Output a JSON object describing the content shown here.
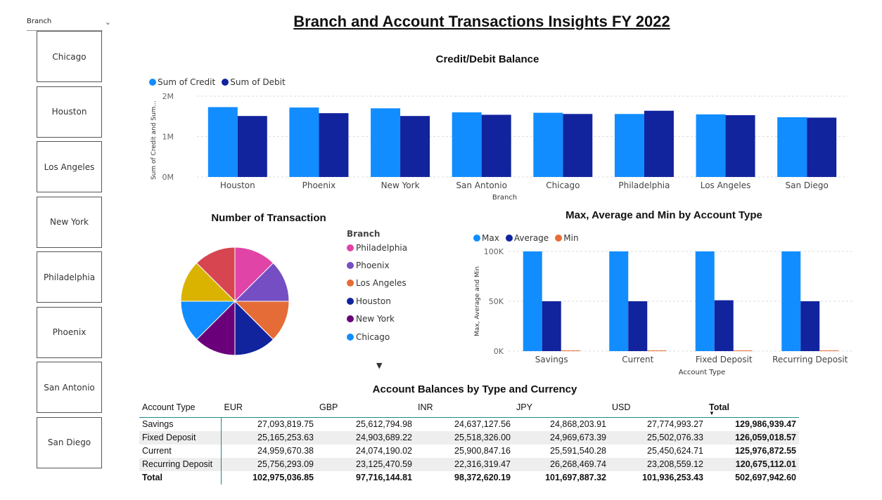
{
  "page": {
    "title": "Branch and Account Transactions Insights FY 2022"
  },
  "slicer": {
    "header": "Branch",
    "items": [
      "Chicago",
      "Houston",
      "Los Angeles",
      "New York",
      "Philadelphia",
      "Phoenix",
      "San Antonio",
      "San Diego"
    ]
  },
  "credit_debit": {
    "title": "Credit/Debit Balance",
    "legend": [
      "Sum of Credit",
      "Sum of Debit"
    ],
    "colors": [
      "#118DFF",
      "#12239E"
    ],
    "chart_data": {
      "type": "bar",
      "categories": [
        "Houston",
        "Phoenix",
        "New York",
        "San Antonio",
        "Chicago",
        "Philadelphia",
        "Los Angeles",
        "San Diego"
      ],
      "series": [
        {
          "name": "Sum of Credit",
          "values": [
            1730000,
            1720000,
            1700000,
            1600000,
            1590000,
            1560000,
            1550000,
            1480000
          ]
        },
        {
          "name": "Sum of Debit",
          "values": [
            1510000,
            1580000,
            1510000,
            1540000,
            1560000,
            1640000,
            1530000,
            1470000
          ]
        }
      ],
      "xlabel": "Branch",
      "ylabel": "Sum of Credit and Sum...",
      "yticks": [
        "0M",
        "1M",
        "2M"
      ],
      "ylim": [
        0,
        2000000
      ]
    }
  },
  "transactions": {
    "title": "Number of Transaction",
    "legend_title": "Branch",
    "more_indicator": "▼",
    "chart_data": {
      "type": "pie",
      "slices": [
        {
          "name": "Philadelphia",
          "value": 12.5,
          "color": "#E044A7"
        },
        {
          "name": "Phoenix",
          "value": 12.5,
          "color": "#744EC2"
        },
        {
          "name": "Los Angeles",
          "value": 12.5,
          "color": "#E66C37"
        },
        {
          "name": "Houston",
          "value": 12.5,
          "color": "#12239E"
        },
        {
          "name": "New York",
          "value": 12.5,
          "color": "#6B007B"
        },
        {
          "name": "Chicago",
          "value": 12.5,
          "color": "#118DFF"
        },
        {
          "name": "San Antonio",
          "value": 12.5,
          "color": "#D9B300"
        },
        {
          "name": "San Diego",
          "value": 12.5,
          "color": "#D64550"
        }
      ],
      "legend_visible": [
        "Philadelphia",
        "Phoenix",
        "Los Angeles",
        "Houston",
        "New York",
        "Chicago"
      ]
    }
  },
  "account_type": {
    "title": "Max, Average and Min by Account Type",
    "legend": [
      "Max",
      "Average",
      "Min"
    ],
    "colors": [
      "#118DFF",
      "#12239E",
      "#E66C37"
    ],
    "chart_data": {
      "type": "bar",
      "categories": [
        "Savings",
        "Current",
        "Fixed Deposit",
        "Recurring Deposit"
      ],
      "series": [
        {
          "name": "Max",
          "values": [
            100000,
            100000,
            100000,
            100000
          ]
        },
        {
          "name": "Average",
          "values": [
            50000,
            50000,
            51000,
            50000
          ]
        },
        {
          "name": "Min",
          "values": [
            500,
            500,
            500,
            500
          ]
        }
      ],
      "xlabel": "Account Type",
      "ylabel": "Max, Average and Min",
      "yticks": [
        "0K",
        "50K",
        "100K"
      ],
      "ylim": [
        0,
        100000
      ]
    }
  },
  "balances": {
    "title": "Account Balances by Type and Currency",
    "columns": [
      "Account Type",
      "EUR",
      "GBP",
      "INR",
      "JPY",
      "USD",
      "Total"
    ],
    "sort_indicator": "▼",
    "rows": [
      [
        "Savings",
        "27,093,819.75",
        "25,612,794.98",
        "24,637,127.56",
        "24,868,203.91",
        "27,774,993.27",
        "129,986,939.47"
      ],
      [
        "Fixed Deposit",
        "25,165,253.63",
        "24,903,689.22",
        "25,518,326.00",
        "24,969,673.39",
        "25,502,076.33",
        "126,059,018.57"
      ],
      [
        "Current",
        "24,959,670.38",
        "24,074,190.02",
        "25,900,847.16",
        "25,591,540.28",
        "25,450,624.71",
        "125,976,872.55"
      ],
      [
        "Recurring Deposit",
        "25,756,293.09",
        "23,125,470.59",
        "22,316,319.47",
        "26,268,469.74",
        "23,208,559.12",
        "120,675,112.01"
      ]
    ],
    "total_row": [
      "Total",
      "102,975,036.85",
      "97,716,144.81",
      "98,372,620.19",
      "101,697,887.32",
      "101,936,253.43",
      "502,697,942.60"
    ]
  }
}
